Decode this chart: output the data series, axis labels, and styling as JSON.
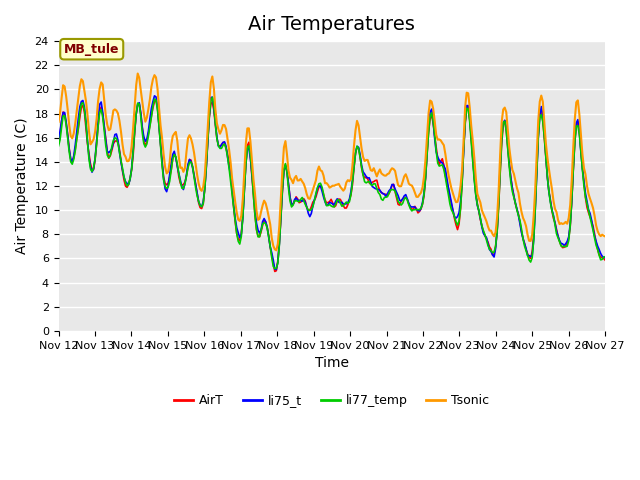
{
  "title": "Air Temperatures",
  "ylabel": "Air Temperature (C)",
  "xlabel": "Time",
  "ylim": [
    0,
    24
  ],
  "yticks": [
    0,
    2,
    4,
    6,
    8,
    10,
    12,
    14,
    16,
    18,
    20,
    22,
    24
  ],
  "xtick_labels": [
    "Nov 12",
    "Nov 13",
    "Nov 14",
    "Nov 15",
    "Nov 16",
    "Nov 17",
    "Nov 18",
    "Nov 19",
    "Nov 20",
    "Nov 21",
    "Nov 22",
    "Nov 23",
    "Nov 24",
    "Nov 25",
    "Nov 26",
    "Nov 27"
  ],
  "annotation_text": "MB_tule",
  "annotation_text_color": "#800000",
  "annotation_box_color": "#ffffcc",
  "annotation_box_edge": "#999900",
  "line_colors": {
    "AirT": "#ff0000",
    "li75_t": "#0000ff",
    "li77_temp": "#00cc00",
    "Tsonic": "#ff9900"
  },
  "line_widths": {
    "AirT": 1.2,
    "li75_t": 1.2,
    "li77_temp": 1.2,
    "Tsonic": 1.5
  },
  "legend_labels": [
    "AirT",
    "li75_t",
    "li77_temp",
    "Tsonic"
  ],
  "plot_bg_color": "#e8e8e8",
  "fig_bg_color": "#ffffff",
  "grid_color": "#ffffff",
  "title_fontsize": 14,
  "axis_label_fontsize": 10,
  "tick_fontsize": 8
}
